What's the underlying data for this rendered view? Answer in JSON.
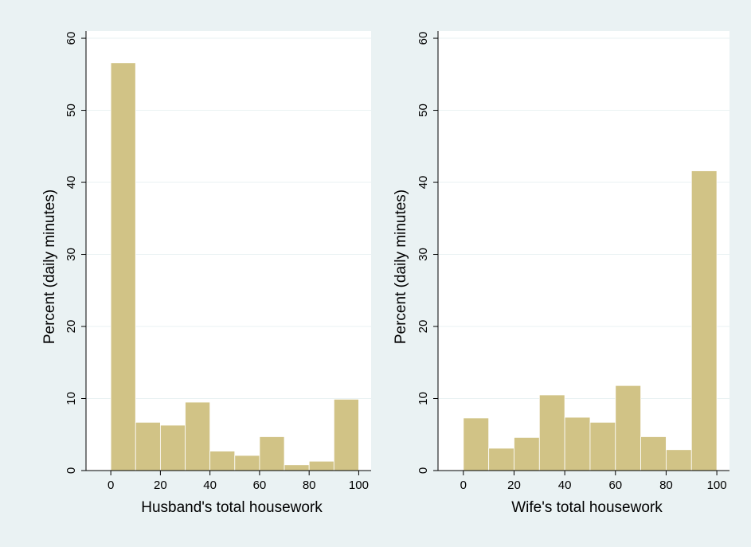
{
  "colors": {
    "background": "#eaf2f3",
    "plot": "#ffffff",
    "bar": "#d1c386",
    "grid": "#eaf2f3"
  },
  "chart_data": [
    {
      "type": "bar",
      "xlabel": "Husband's total housework",
      "ylabel": "Percent (daily minutes)",
      "xlim": [
        -10,
        105
      ],
      "ylim": [
        0,
        61
      ],
      "xticks": [
        0,
        20,
        40,
        60,
        80,
        100
      ],
      "yticks": [
        0,
        10,
        20,
        30,
        40,
        50,
        60
      ],
      "grid": true,
      "bin_width": 10,
      "bin_starts": [
        0,
        10,
        20,
        30,
        40,
        50,
        60,
        70,
        80,
        90
      ],
      "values": [
        56.6,
        6.7,
        6.3,
        9.5,
        2.7,
        2.1,
        4.7,
        0.8,
        1.3,
        9.9
      ]
    },
    {
      "type": "bar",
      "xlabel": "Wife's total housework",
      "ylabel": "Percent (daily minutes)",
      "xlim": [
        -10,
        105
      ],
      "ylim": [
        0,
        61
      ],
      "xticks": [
        0,
        20,
        40,
        60,
        80,
        100
      ],
      "yticks": [
        0,
        10,
        20,
        30,
        40,
        50,
        60
      ],
      "grid": true,
      "bin_width": 10,
      "bin_starts": [
        0,
        10,
        20,
        30,
        40,
        50,
        60,
        70,
        80,
        90
      ],
      "values": [
        7.3,
        3.1,
        4.6,
        10.5,
        7.4,
        6.7,
        11.8,
        4.7,
        2.9,
        41.6
      ]
    }
  ]
}
